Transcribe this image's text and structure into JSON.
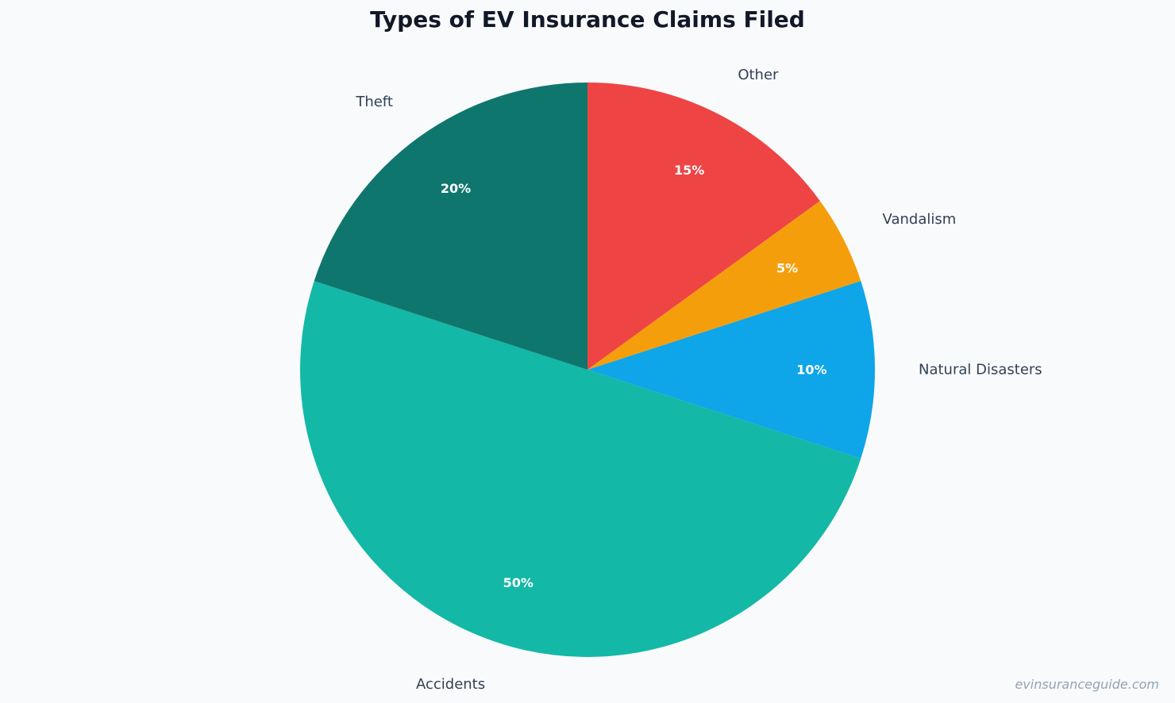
{
  "chart_data": {
    "type": "pie",
    "title": "Types of EV Insurance Claims Filed",
    "slices": [
      {
        "label": "Other",
        "value": 15,
        "pct_label": "15%",
        "color": "#ef4444"
      },
      {
        "label": "Vandalism",
        "value": 5,
        "pct_label": "5%",
        "color": "#f59e0b"
      },
      {
        "label": "Natural Disasters",
        "value": 10,
        "pct_label": "10%",
        "color": "#0ea5e9"
      },
      {
        "label": "Accidents",
        "value": 50,
        "pct_label": "50%",
        "color": "#14b8a6"
      },
      {
        "label": "Theft",
        "value": 20,
        "pct_label": "20%",
        "color": "#0f766e"
      }
    ],
    "start_direction": "top",
    "orientation": "clockwise"
  },
  "watermark": "evinsuranceguide.com"
}
